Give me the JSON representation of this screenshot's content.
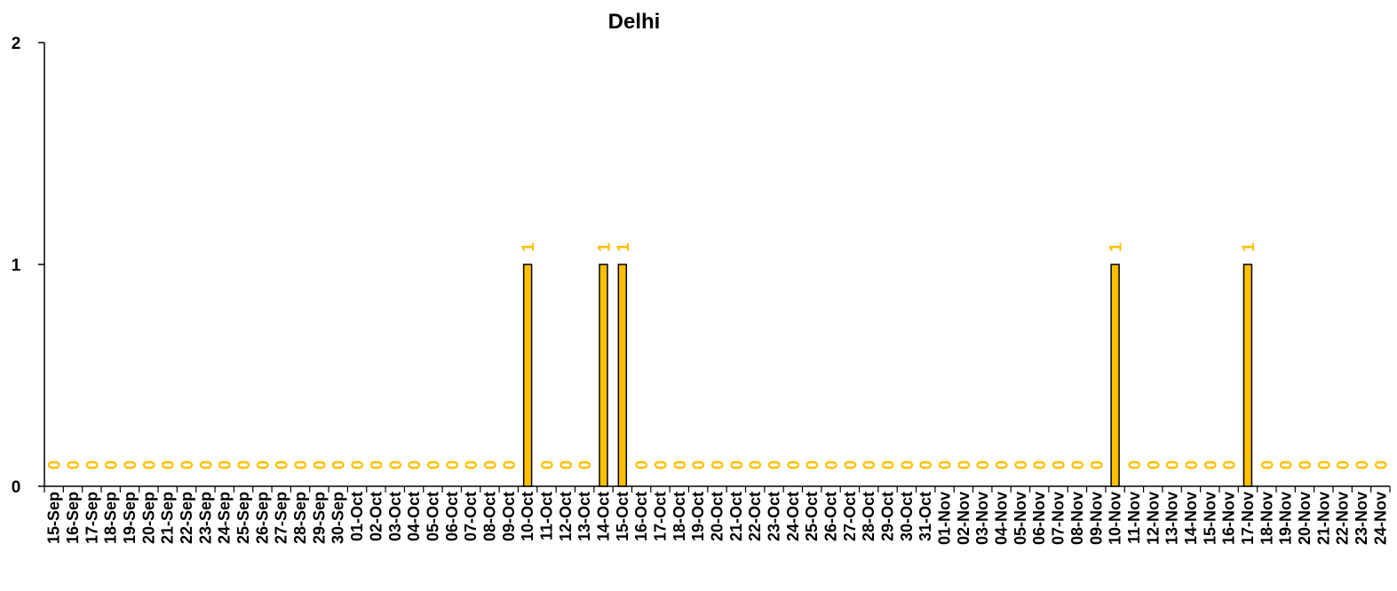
{
  "chart_data": {
    "type": "bar",
    "title": "Delhi",
    "xlabel": "",
    "ylabel": "",
    "ylim": [
      0,
      2
    ],
    "yticks": [
      "0",
      "1",
      "2"
    ],
    "grid": false,
    "legend": "none",
    "colors": {
      "bar": "#FFC000",
      "bar_edge": "#000000",
      "label": "#FFC000",
      "axis": "#000000"
    },
    "categories": [
      "15-Sep",
      "16-Sep",
      "17-Sep",
      "18-Sep",
      "19-Sep",
      "20-Sep",
      "21-Sep",
      "22-Sep",
      "23-Sep",
      "24-Sep",
      "25-Sep",
      "26-Sep",
      "27-Sep",
      "28-Sep",
      "29-Sep",
      "30-Sep",
      "01-Oct",
      "02-Oct",
      "03-Oct",
      "04-Oct",
      "05-Oct",
      "06-Oct",
      "07-Oct",
      "08-Oct",
      "09-Oct",
      "10-Oct",
      "11-Oct",
      "12-Oct",
      "13-Oct",
      "14-Oct",
      "15-Oct",
      "16-Oct",
      "17-Oct",
      "18-Oct",
      "19-Oct",
      "20-Oct",
      "21-Oct",
      "22-Oct",
      "23-Oct",
      "24-Oct",
      "25-Oct",
      "26-Oct",
      "27-Oct",
      "28-Oct",
      "29-Oct",
      "30-Oct",
      "31-Oct",
      "01-Nov",
      "02-Nov",
      "03-Nov",
      "04-Nov",
      "05-Nov",
      "06-Nov",
      "07-Nov",
      "08-Nov",
      "09-Nov",
      "10-Nov",
      "11-Nov",
      "12-Nov",
      "13-Nov",
      "14-Nov",
      "15-Nov",
      "16-Nov",
      "17-Nov",
      "18-Nov",
      "19-Nov",
      "20-Nov",
      "21-Nov",
      "22-Nov",
      "23-Nov",
      "24-Nov"
    ],
    "values": [
      0,
      0,
      0,
      0,
      0,
      0,
      0,
      0,
      0,
      0,
      0,
      0,
      0,
      0,
      0,
      0,
      0,
      0,
      0,
      0,
      0,
      0,
      0,
      0,
      0,
      1,
      0,
      0,
      0,
      1,
      1,
      0,
      0,
      0,
      0,
      0,
      0,
      0,
      0,
      0,
      0,
      0,
      0,
      0,
      0,
      0,
      0,
      0,
      0,
      0,
      0,
      0,
      0,
      0,
      0,
      0,
      1,
      0,
      0,
      0,
      0,
      0,
      0,
      1,
      0,
      0,
      0,
      0,
      0,
      0,
      0
    ],
    "data_labels": [
      "0",
      "0",
      "0",
      "0",
      "0",
      "0",
      "0",
      "0",
      "0",
      "0",
      "0",
      "0",
      "0",
      "0",
      "0",
      "0",
      "0",
      "0",
      "0",
      "0",
      "0",
      "0",
      "0",
      "0",
      "0",
      "1",
      "0",
      "0",
      "0",
      "1",
      "1",
      "0",
      "0",
      "0",
      "0",
      "0",
      "0",
      "0",
      "0",
      "0",
      "0",
      "0",
      "0",
      "0",
      "0",
      "0",
      "0",
      "0",
      "0",
      "0",
      "0",
      "0",
      "0",
      "0",
      "0",
      "0",
      "1",
      "0",
      "0",
      "0",
      "0",
      "0",
      "0",
      "1",
      "0",
      "0",
      "0",
      "0",
      "0",
      "0",
      "0"
    ]
  }
}
